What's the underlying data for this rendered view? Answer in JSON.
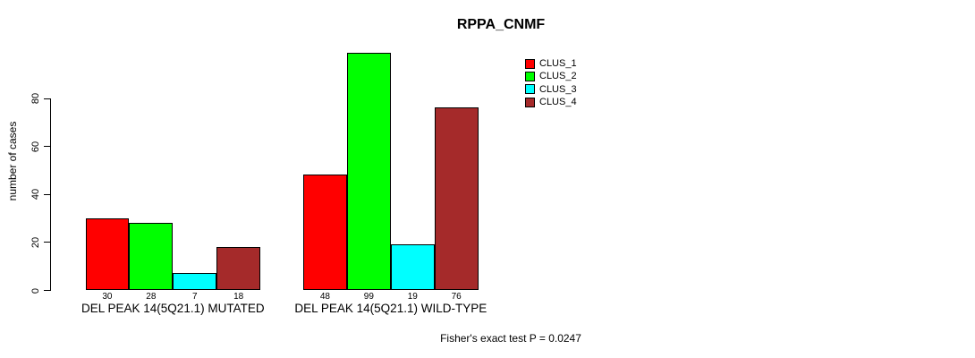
{
  "chart_data": {
    "type": "bar",
    "title": "RPPA_CNMF",
    "ylabel": "number of cases",
    "xlabel": "",
    "categories": [
      "DEL PEAK 14(5Q21.1) MUTATED",
      "DEL PEAK 14(5Q21.1) WILD-TYPE"
    ],
    "series": [
      {
        "name": "CLUS_1",
        "color": "#FF0000",
        "values": [
          30,
          48
        ]
      },
      {
        "name": "CLUS_2",
        "color": "#00FF00",
        "values": [
          28,
          99
        ]
      },
      {
        "name": "CLUS_3",
        "color": "#00FFFF",
        "values": [
          7,
          19
        ]
      },
      {
        "name": "CLUS_4",
        "color": "#A52A2A",
        "values": [
          18,
          76
        ]
      }
    ],
    "bar_value_labels": {
      "DEL PEAK 14(5Q21.1) MUTATED": [
        30,
        28,
        7,
        18
      ],
      "DEL PEAK 14(5Q21.1) WILD-TYPE": [
        48,
        99,
        19,
        76
      ]
    },
    "yticks": [
      0,
      20,
      40,
      60,
      80
    ],
    "ylim": [
      0,
      100
    ],
    "grid": false,
    "legend_position": "top-right",
    "annotation": "Fisher's exact test P = 0.0247"
  },
  "colors": {
    "axis": "#000000",
    "bar_border": "#000000",
    "text": "#000000",
    "background": "#FFFFFF"
  }
}
